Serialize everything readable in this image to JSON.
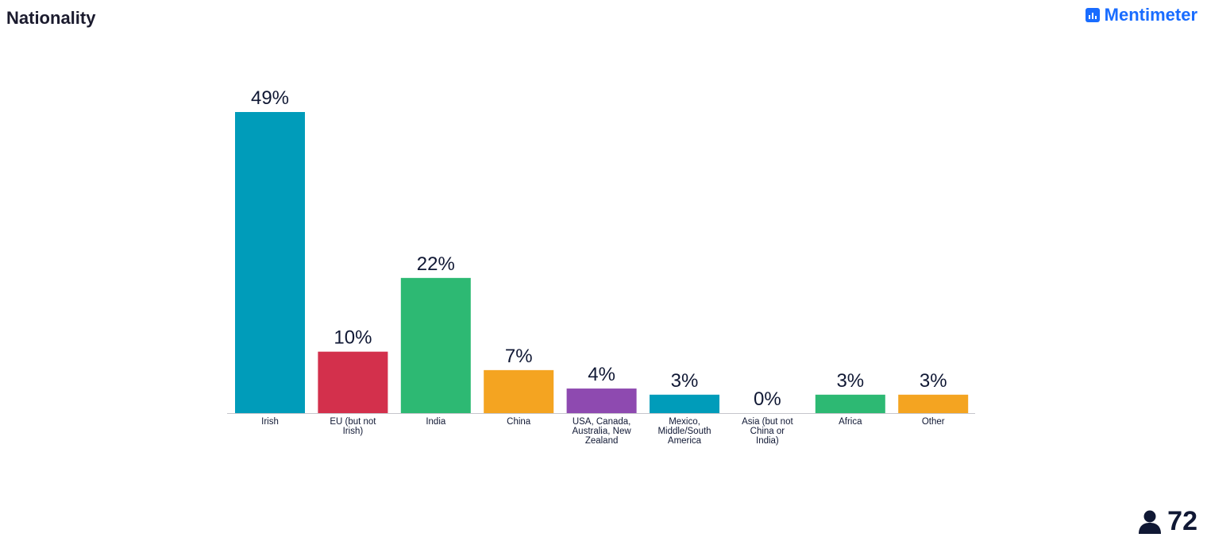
{
  "header": {
    "title": "Nationality"
  },
  "brand": {
    "name": "Mentimeter",
    "icon": "mentimeter-logo-icon",
    "color": "#196cff"
  },
  "footer": {
    "participants_icon": "person-icon",
    "participants_count": "72"
  },
  "chart_data": {
    "type": "bar",
    "title": "Nationality",
    "xlabel": "",
    "ylabel": "",
    "ylim": [
      0,
      52
    ],
    "grid": false,
    "categories": [
      "Irish",
      "EU (but not Irish)",
      "India",
      "China",
      "USA, Canada, Australia, New Zealand",
      "Mexico, Middle/South America",
      "Asia (but not China or India)",
      "Africa",
      "Other"
    ],
    "category_label_lines": [
      [
        "Irish"
      ],
      [
        "EU (but not",
        "Irish)"
      ],
      [
        "India"
      ],
      [
        "China"
      ],
      [
        "USA, Canada,",
        "Australia, New",
        "Zealand"
      ],
      [
        "Mexico,",
        "Middle/South",
        "America"
      ],
      [
        "Asia (but not",
        "China or",
        "India)"
      ],
      [
        "Africa"
      ],
      [
        "Other"
      ]
    ],
    "values": [
      49,
      10,
      22,
      7,
      4,
      3,
      0,
      3,
      3
    ],
    "value_labels": [
      "49%",
      "10%",
      "22%",
      "7%",
      "4%",
      "3%",
      "0%",
      "3%",
      "3%"
    ],
    "colors": [
      "#009cba",
      "#d3304c",
      "#2db973",
      "#f4a421",
      "#8e4ab0",
      "#009cba",
      "#d3304c",
      "#2db973",
      "#f4a421"
    ]
  }
}
